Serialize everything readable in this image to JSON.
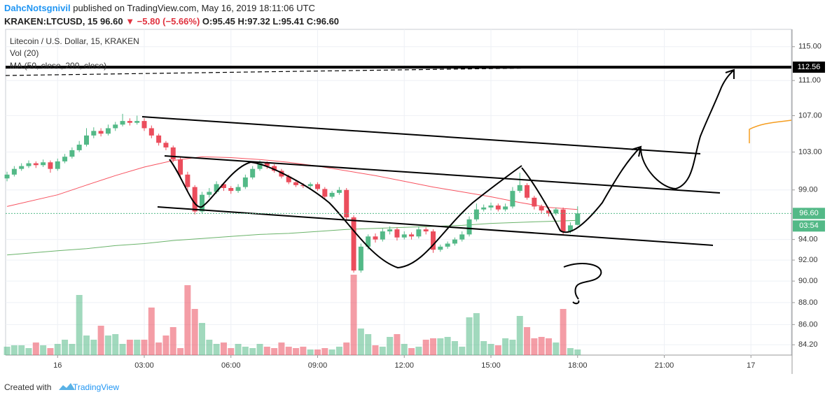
{
  "header": {
    "author": "DahcNotsgnivil",
    "published": "published on TradingView.com, May 16, 2019 18:11:06 UTC",
    "symbol": "KRAKEN:LTCUSD, 15",
    "last": "96.60",
    "change": "▼ −5.80 (−5.66%)",
    "ohlc": "O:95.45 H:97.32 L:95.41 C:96.60"
  },
  "chart_data": {
    "type": "candlestick",
    "title": "Litecoin / U.S. Dollar, 15, KRAKEN",
    "indicators": [
      "Vol (20)",
      "MA (50, close, 200, close)"
    ],
    "log_scale": true,
    "grid": true,
    "ylim": [
      83.3,
      117.1
    ],
    "yticks": [
      {
        "value": 115,
        "label": "115.00"
      },
      {
        "value": 111,
        "label": "111.00"
      },
      {
        "value": 107,
        "label": "107.00"
      },
      {
        "value": 103,
        "label": "103.00"
      },
      {
        "value": 99,
        "label": "99.00"
      },
      {
        "value": 94,
        "label": "94.00"
      },
      {
        "value": 92,
        "label": "92.00"
      },
      {
        "value": 90,
        "label": "90.00"
      },
      {
        "value": 88,
        "label": "88.00"
      },
      {
        "value": 86,
        "label": "86.00"
      },
      {
        "value": 84.2,
        "label": "84.20"
      }
    ],
    "xlim": [
      -1.8,
      25.4
    ],
    "xticks": [
      {
        "value": 0,
        "label": "16"
      },
      {
        "value": 3,
        "label": "03:00"
      },
      {
        "value": 6,
        "label": "06:00"
      },
      {
        "value": 9,
        "label": "09:00"
      },
      {
        "value": 12,
        "label": "12:00"
      },
      {
        "value": 15,
        "label": "15:00"
      },
      {
        "value": 18,
        "label": "18:00"
      },
      {
        "value": 21,
        "label": "21:00"
      },
      {
        "value": 24,
        "label": "17"
      }
    ],
    "x": [
      -1.75,
      -1.5,
      -1.25,
      -1,
      -0.75,
      -0.5,
      -0.25,
      0,
      0.25,
      0.5,
      0.75,
      1,
      1.25,
      1.5,
      1.75,
      2,
      2.25,
      2.5,
      2.75,
      3,
      3.25,
      3.5,
      3.75,
      4,
      4.25,
      4.5,
      4.75,
      5,
      5.25,
      5.5,
      5.75,
      6,
      6.25,
      6.5,
      6.75,
      7,
      7.25,
      7.5,
      7.75,
      8,
      8.25,
      8.5,
      8.75,
      9,
      9.25,
      9.5,
      9.75,
      10,
      10.25,
      10.5,
      10.75,
      11,
      11.25,
      11.5,
      11.75,
      12,
      12.25,
      12.5,
      12.75,
      13,
      13.25,
      13.5,
      13.75,
      14,
      14.25,
      14.5,
      14.75,
      15,
      15.25,
      15.5,
      15.75,
      16,
      16.25,
      16.5,
      16.75,
      17,
      17.25,
      17.5,
      17.75,
      18
    ],
    "open": [
      100.2,
      100.6,
      101.2,
      101.5,
      101.8,
      101.6,
      101.9,
      101.2,
      102.0,
      102.5,
      103.2,
      103.8,
      104.8,
      105.3,
      105.0,
      105.6,
      106.0,
      106.4,
      106.2,
      106.4,
      105.6,
      104.8,
      104.0,
      103.5,
      102.2,
      100.6,
      99.3,
      96.8,
      98.5,
      98.8,
      99.6,
      99.2,
      98.9,
      99.3,
      100.3,
      101.2,
      101.8,
      101.5,
      101.0,
      100.4,
      99.8,
      99.5,
      99.4,
      99.6,
      99.1,
      98.3,
      98.7,
      99.0,
      96.2,
      91.0,
      93.3,
      94.3,
      94.0,
      94.8,
      95.0,
      94.2,
      94.5,
      94.3,
      95.0,
      94.8,
      93.0,
      93.3,
      93.6,
      94.0,
      94.5,
      96.0,
      97.0,
      97.2,
      97.4,
      97.0,
      97.3,
      98.9,
      99.5,
      98.2,
      97.3,
      96.9,
      96.6,
      97.0,
      94.8,
      95.45
    ],
    "high": [
      100.9,
      101.5,
      101.8,
      102.1,
      102.0,
      102.2,
      102.1,
      102.3,
      102.8,
      103.5,
      104.2,
      105.6,
      105.7,
      105.6,
      106.0,
      106.3,
      107.2,
      106.7,
      107.0,
      106.7,
      105.9,
      105.0,
      104.2,
      103.7,
      102.4,
      100.9,
      99.5,
      98.8,
      99.2,
      99.9,
      99.8,
      99.4,
      99.6,
      100.6,
      101.5,
      102.1,
      102.0,
      101.7,
      101.2,
      100.6,
      100.0,
      99.7,
      99.8,
      99.8,
      99.3,
      98.9,
      99.3,
      99.2,
      96.4,
      93.6,
      94.5,
      94.6,
      95.1,
      95.3,
      95.2,
      94.8,
      94.7,
      95.3,
      95.2,
      95.0,
      93.5,
      93.8,
      94.2,
      94.8,
      96.3,
      97.6,
      97.5,
      97.7,
      97.6,
      97.6,
      99.3,
      100.8,
      99.7,
      98.4,
      97.5,
      97.1,
      97.2,
      97.2,
      95.7,
      97.32
    ],
    "low": [
      99.9,
      100.4,
      101.0,
      101.3,
      101.3,
      101.4,
      100.8,
      101.0,
      101.8,
      102.3,
      103.0,
      103.6,
      104.5,
      104.7,
      104.8,
      105.3,
      105.8,
      105.9,
      106.0,
      105.3,
      104.5,
      103.7,
      103.2,
      101.9,
      100.2,
      98.9,
      96.5,
      96.6,
      98.2,
      98.6,
      98.9,
      98.6,
      98.7,
      99.1,
      100.1,
      101.0,
      101.2,
      100.8,
      100.2,
      99.6,
      99.3,
      99.2,
      99.2,
      98.9,
      98.1,
      98.1,
      98.5,
      96.0,
      90.8,
      90.8,
      93.0,
      93.7,
      93.8,
      94.5,
      93.9,
      94.0,
      94.0,
      94.1,
      94.5,
      92.7,
      92.8,
      93.1,
      93.4,
      93.8,
      94.3,
      95.8,
      96.8,
      96.9,
      96.8,
      96.8,
      97.1,
      98.7,
      98.0,
      97.0,
      96.6,
      96.3,
      96.4,
      94.5,
      94.6,
      95.41
    ],
    "close": [
      100.6,
      101.2,
      101.5,
      101.8,
      101.6,
      101.9,
      101.2,
      102.0,
      102.5,
      103.2,
      103.8,
      104.8,
      105.3,
      105.0,
      105.6,
      106.0,
      106.4,
      106.2,
      106.4,
      105.6,
      104.8,
      104.0,
      103.5,
      102.2,
      100.6,
      99.3,
      96.8,
      98.5,
      98.8,
      99.6,
      99.2,
      98.9,
      99.3,
      100.3,
      101.2,
      101.8,
      101.5,
      101.0,
      100.4,
      99.8,
      99.5,
      99.4,
      99.6,
      99.1,
      98.3,
      98.7,
      99.0,
      96.2,
      91.0,
      93.3,
      94.3,
      94.0,
      94.8,
      95.0,
      94.2,
      94.5,
      94.3,
      95.0,
      94.8,
      93.0,
      93.3,
      93.6,
      94.0,
      94.5,
      96.0,
      97.0,
      97.2,
      97.4,
      97.0,
      97.3,
      98.9,
      99.5,
      98.2,
      97.3,
      96.9,
      96.6,
      97.0,
      94.8,
      95.4,
      96.6
    ],
    "volume": [
      12,
      14,
      14,
      10,
      18,
      14,
      10,
      16,
      22,
      16,
      86,
      28,
      22,
      42,
      28,
      30,
      16,
      22,
      22,
      22,
      68,
      18,
      28,
      40,
      10,
      100,
      66,
      46,
      22,
      16,
      18,
      10,
      16,
      12,
      10,
      16,
      12,
      10,
      18,
      12,
      10,
      12,
      8,
      8,
      10,
      8,
      12,
      18,
      115,
      38,
      30,
      14,
      12,
      26,
      30,
      16,
      10,
      12,
      22,
      24,
      24,
      26,
      20,
      12,
      54,
      60,
      20,
      16,
      14,
      24,
      22,
      56,
      40,
      24,
      26,
      24,
      18,
      66,
      10,
      8
    ],
    "up_color": "#53b987",
    "down_color": "#eb4d5c",
    "moving_averages": [
      {
        "color": "#f7525f",
        "x": [
          -1.75,
          0,
          1,
          2,
          3,
          4,
          5,
          6,
          7,
          8,
          9,
          10,
          11,
          12,
          13,
          14,
          15,
          16,
          17,
          18
        ],
        "values": [
          97.3,
          98.5,
          99.5,
          100.5,
          101.4,
          102.1,
          102.5,
          102.4,
          102.2,
          101.9,
          101.5,
          101.0,
          100.5,
          99.9,
          99.3,
          98.8,
          98.3,
          97.7,
          97.2,
          97.0
        ]
      },
      {
        "color": "#6ab36a",
        "x": [
          -1.75,
          0,
          1,
          2,
          3,
          4,
          5,
          6,
          7,
          8,
          9,
          10,
          11,
          12,
          13,
          14,
          15,
          16,
          17,
          18
        ],
        "values": [
          92.5,
          92.9,
          93.1,
          93.4,
          93.6,
          93.9,
          94.1,
          94.3,
          94.5,
          94.6,
          94.8,
          95.0,
          95.1,
          95.2,
          95.3,
          95.4,
          95.6,
          95.7,
          95.8,
          95.9
        ]
      }
    ],
    "price_lines": [
      {
        "value": 112.56,
        "label": "112.56",
        "color": "#000000"
      },
      {
        "value": 96.6,
        "label": "96.60",
        "color": "#53b987"
      }
    ],
    "countdown": "03:54"
  },
  "footer": {
    "created": "Created with",
    "brand": "TradingView"
  }
}
